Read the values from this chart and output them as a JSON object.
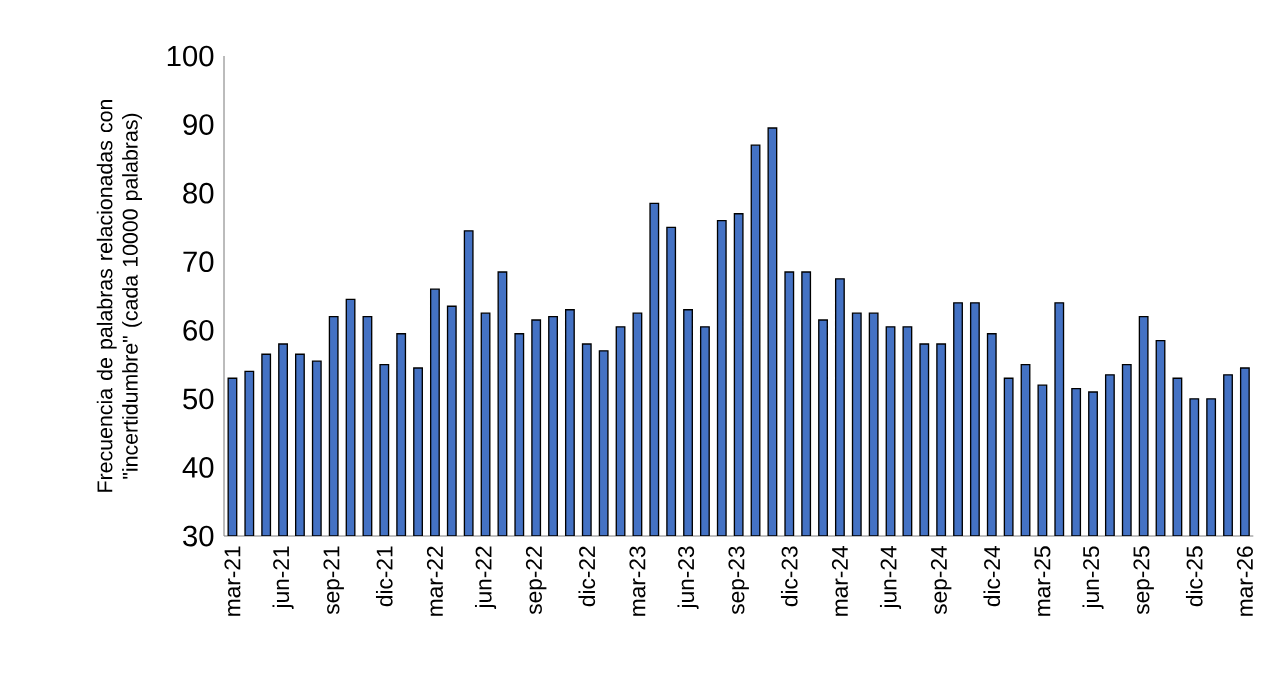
{
  "chart_data": {
    "type": "bar",
    "ylabel": "Frecuencia de palabras relacionadas con \"incertidumbre\" (cada 10000 palabras)",
    "categories": [
      "mar-21",
      null,
      null,
      "jun-21",
      null,
      null,
      "sep-21",
      null,
      null,
      "dic-21",
      null,
      null,
      "mar-22",
      null,
      null,
      "jun-22",
      null,
      null,
      "sep-22",
      null,
      null,
      "dic-22",
      null,
      null,
      "mar-23",
      null,
      null,
      "jun-23",
      null,
      null,
      "sep-23",
      null,
      null,
      "dic-23",
      null,
      null,
      "mar-24",
      null,
      null,
      "jun-24",
      null,
      null,
      "sep-24",
      null,
      null,
      "dic-24",
      null,
      null,
      "mar-25",
      null,
      null,
      "jun-25",
      null,
      null,
      "sep-25",
      null,
      null,
      "dic-25",
      null,
      null,
      "mar-26"
    ],
    "values": [
      53,
      54,
      56.5,
      58,
      56.5,
      55.5,
      62,
      64.5,
      62,
      55,
      59.5,
      54.5,
      66,
      63.5,
      74.5,
      62.5,
      68.5,
      59.5,
      61.5,
      62,
      63,
      58,
      57,
      60.5,
      62.5,
      78.5,
      75,
      63,
      60.5,
      76,
      77,
      87,
      89.5,
      68.5,
      68.5,
      61.5,
      67.5,
      62.5,
      62.5,
      60.5,
      60.5,
      58,
      58,
      64,
      64,
      59.5,
      53,
      55,
      52,
      64,
      51.5,
      51,
      53.5,
      55,
      62,
      58.5,
      53,
      50,
      50,
      53.5,
      54.5
    ],
    "color": "#4472c4",
    "ylim": [
      30,
      100
    ],
    "yticks": [
      30,
      40,
      50,
      60,
      70,
      80,
      90,
      100
    ]
  }
}
